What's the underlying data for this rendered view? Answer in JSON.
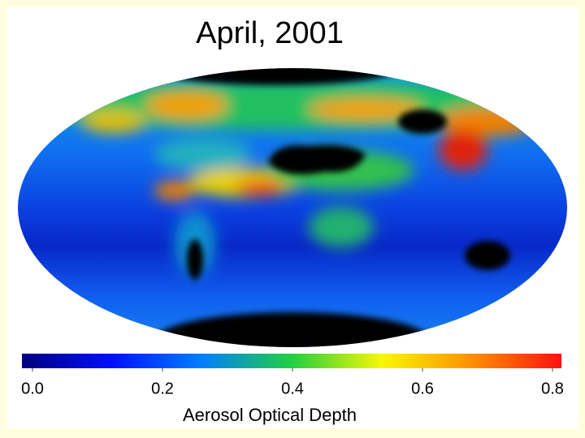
{
  "title": "April, 2001",
  "colorbar": {
    "range": [
      0,
      0.8
    ],
    "ticks": [
      {
        "value": 0,
        "label": "0.0"
      },
      {
        "value": 0.2,
        "label": "0.2"
      },
      {
        "value": 0.4,
        "label": "0.4"
      },
      {
        "value": 0.6,
        "label": "0.6"
      },
      {
        "value": 0.8,
        "label": "0.8"
      }
    ],
    "colors": [
      "#00007f",
      "#0010ff",
      "#0080ff",
      "#20d040",
      "#f8f800",
      "#ff9000",
      "#ff1010"
    ],
    "label": "Aerosol Optical Depth"
  }
}
